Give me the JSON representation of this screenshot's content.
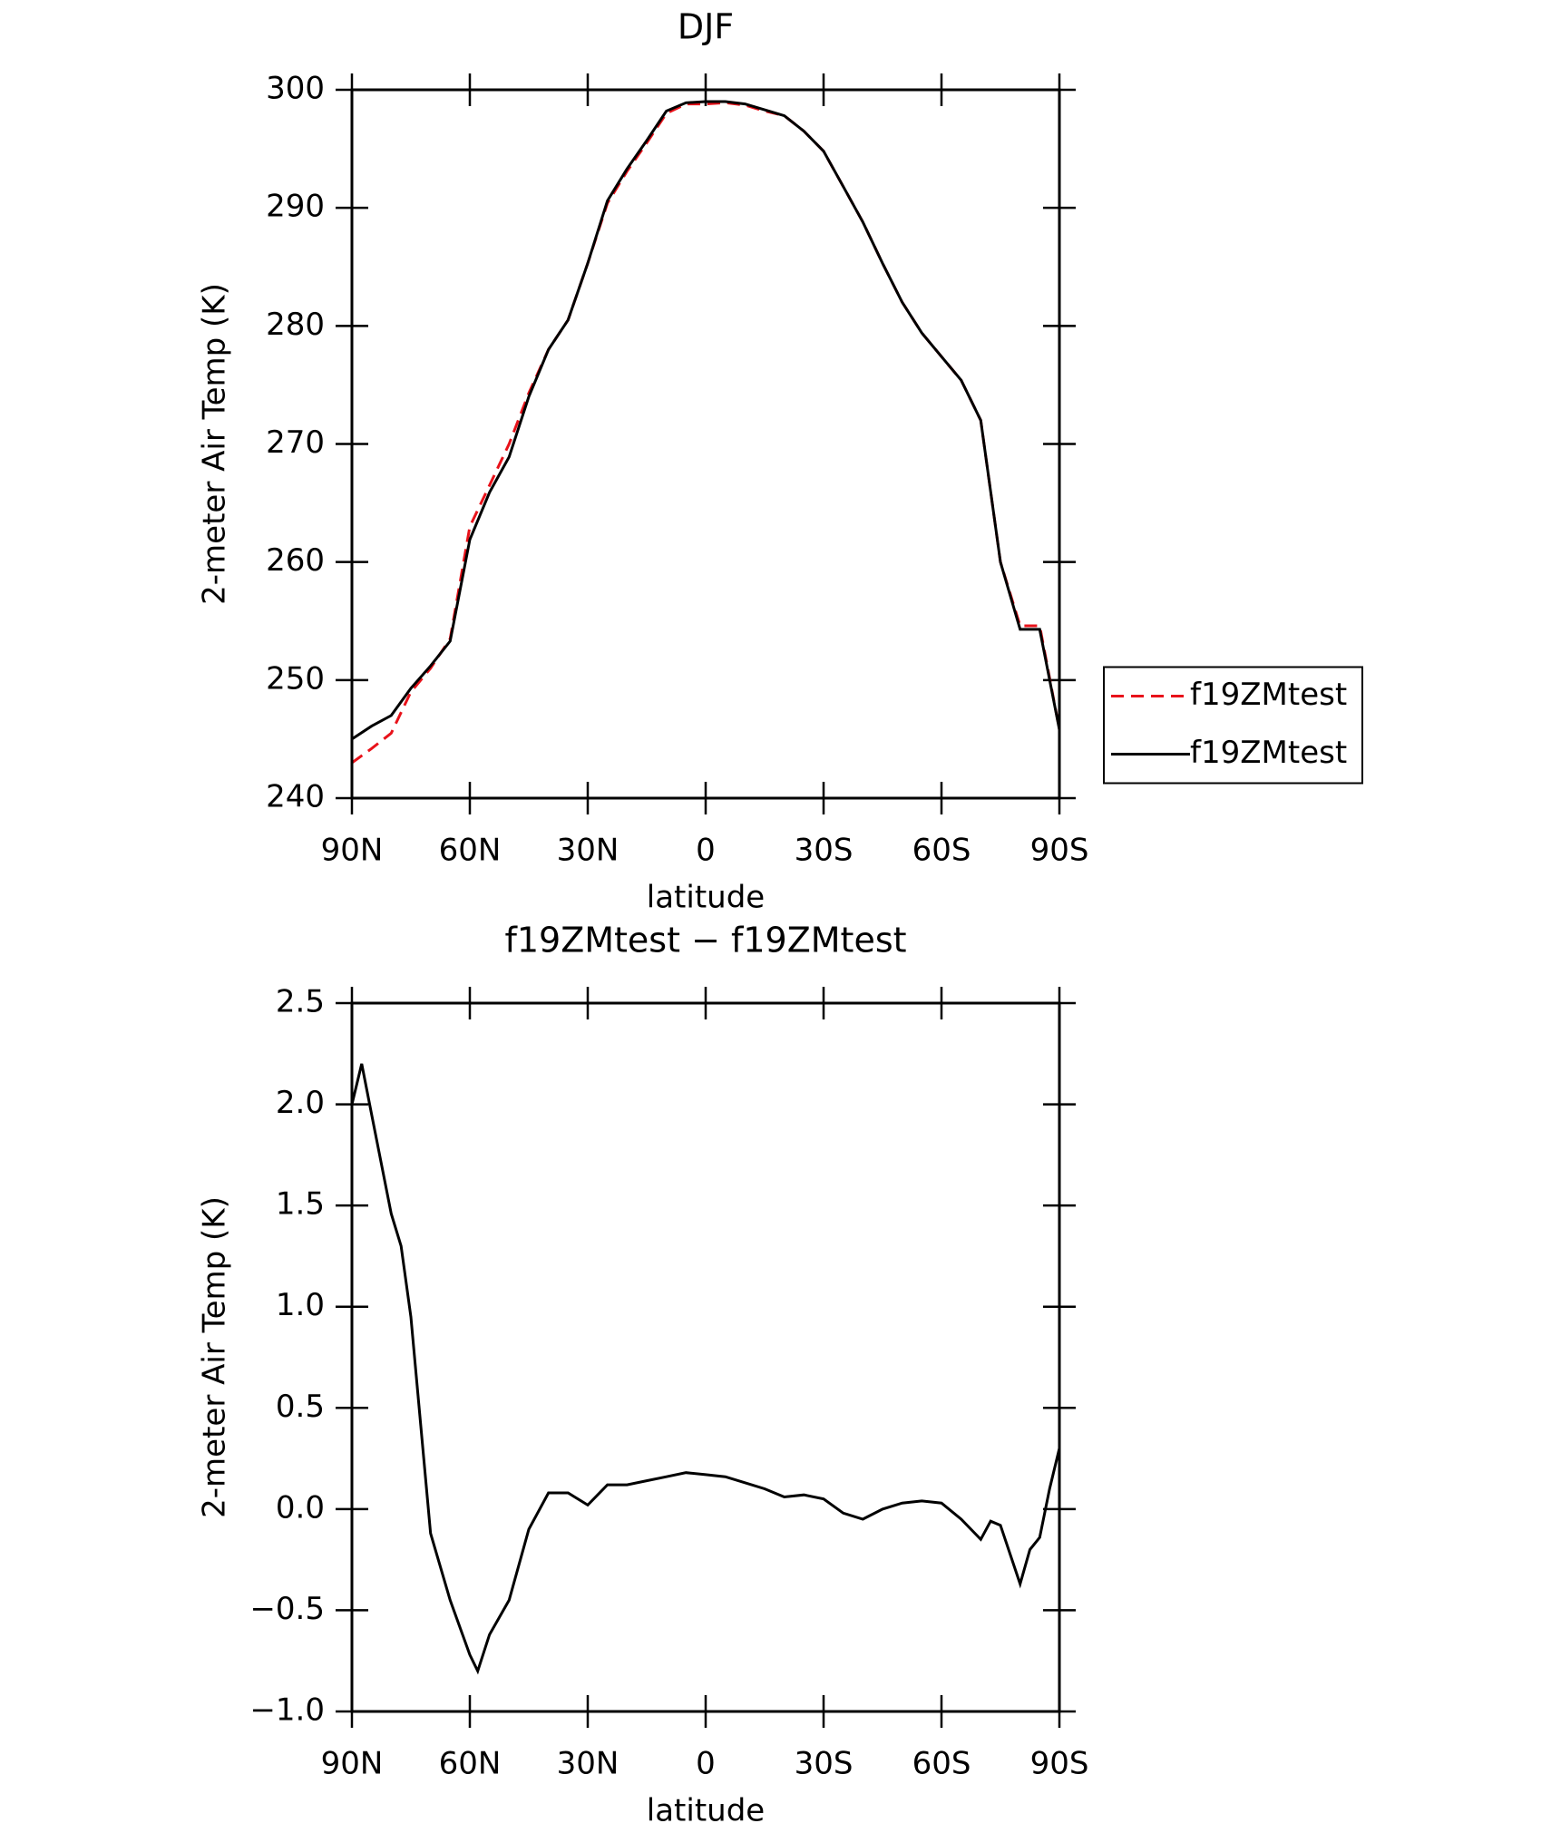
{
  "chart_data": [
    {
      "type": "line",
      "title": "DJF",
      "xlabel": "latitude",
      "ylabel": "2-meter Air Temp (K)",
      "x": [
        90,
        85,
        80,
        75,
        70,
        65,
        60,
        55,
        50,
        45,
        40,
        35,
        30,
        25,
        20,
        15,
        10,
        5,
        0,
        -5,
        -10,
        -15,
        -20,
        -25,
        -30,
        -35,
        -40,
        -45,
        -50,
        -55,
        -60,
        -65,
        -70,
        -75,
        -80,
        -85,
        -90
      ],
      "series": [
        {
          "name": "f19ZMtest",
          "color": "#e8121a",
          "dash": true,
          "values": [
            243.0,
            244.2,
            245.5,
            249.0,
            251.0,
            253.5,
            263.0,
            266.5,
            270.0,
            274.3,
            278.0,
            280.5,
            285.3,
            290.4,
            293.1,
            295.5,
            298.0,
            298.8,
            298.8,
            298.9,
            298.7,
            298.2,
            297.8,
            296.5,
            294.8,
            291.8,
            288.8,
            285.3,
            282.0,
            279.4,
            277.4,
            275.4,
            272.0,
            260.0,
            254.6,
            254.6,
            245.8
          ]
        },
        {
          "name": "f19ZMtest",
          "color": "#000000",
          "dash": false,
          "values": [
            245.0,
            246.1,
            247.0,
            249.3,
            251.2,
            253.3,
            261.9,
            265.9,
            268.9,
            274.0,
            278.0,
            280.5,
            285.3,
            290.6,
            293.3,
            295.7,
            298.2,
            298.9,
            299.0,
            299.0,
            298.8,
            298.3,
            297.8,
            296.5,
            294.8,
            291.8,
            288.8,
            285.3,
            282.0,
            279.4,
            277.4,
            275.4,
            272.0,
            260.0,
            254.3,
            254.3,
            245.8
          ]
        }
      ],
      "xlim": [
        90,
        -90
      ],
      "xticks": [
        {
          "value": 90,
          "label": "90N"
        },
        {
          "value": 60,
          "label": "60N"
        },
        {
          "value": 30,
          "label": "30N"
        },
        0,
        {
          "value": -30,
          "label": "30S"
        },
        {
          "value": -60,
          "label": "60S"
        },
        {
          "value": -90,
          "label": "90S"
        }
      ],
      "ylim": [
        240,
        300
      ],
      "yticks": [
        240,
        250,
        260,
        270,
        280,
        290,
        300
      ],
      "legend": "right"
    },
    {
      "type": "line",
      "title": "f19ZMtest − f19ZMtest",
      "xlabel": "latitude",
      "ylabel": "2-meter Air Temp (K)",
      "x": [
        90,
        87.5,
        85,
        80,
        77.5,
        75,
        70,
        65,
        60,
        58,
        55,
        50,
        45,
        40,
        35,
        30,
        25,
        20,
        15,
        10,
        5,
        0,
        -5,
        -10,
        -15,
        -20,
        -25,
        -30,
        -35,
        -40,
        -45,
        -50,
        -55,
        -60,
        -65,
        -70,
        -72.5,
        -75,
        -80,
        -82.5,
        -85,
        -87.5,
        -90
      ],
      "values": [
        2.0,
        2.2,
        1.95,
        1.46,
        1.3,
        0.95,
        -0.12,
        -0.45,
        -0.72,
        -0.8,
        -0.62,
        -0.45,
        -0.1,
        0.08,
        0.08,
        0.02,
        0.12,
        0.12,
        0.14,
        0.16,
        0.18,
        0.17,
        0.16,
        0.13,
        0.1,
        0.06,
        0.07,
        0.05,
        -0.02,
        -0.05,
        0.0,
        0.03,
        0.04,
        0.03,
        -0.05,
        -0.15,
        -0.06,
        -0.08,
        -0.37,
        -0.2,
        -0.14,
        0.1,
        0.3
      ],
      "color": "#000000",
      "xlim": [
        90,
        -90
      ],
      "xticks": [
        {
          "value": 90,
          "label": "90N"
        },
        {
          "value": 60,
          "label": "60N"
        },
        {
          "value": 30,
          "label": "30N"
        },
        0,
        {
          "value": -30,
          "label": "30S"
        },
        {
          "value": -60,
          "label": "60S"
        },
        {
          "value": -90,
          "label": "90S"
        }
      ],
      "ylim": [
        -1.0,
        2.5
      ],
      "yticks": [
        {
          "value": -1.0,
          "label": "−1.0"
        },
        {
          "value": -0.5,
          "label": "−0.5"
        },
        {
          "value": 0,
          "label": "0.0"
        },
        0.5,
        {
          "value": 1.0,
          "label": "1.0"
        },
        1.5,
        {
          "value": 2.0,
          "label": "2.0"
        },
        2.5
      ]
    }
  ]
}
